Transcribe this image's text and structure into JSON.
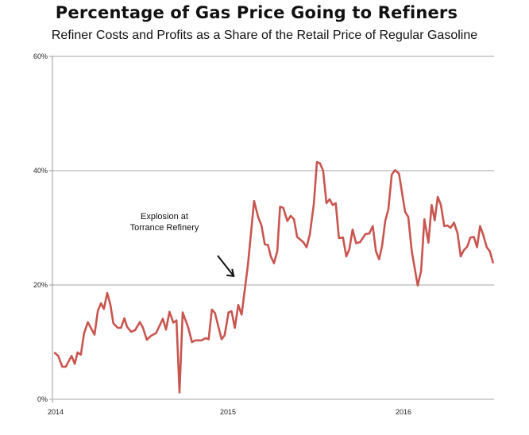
{
  "chart_data": {
    "type": "line",
    "title": "Percentage of Gas Price Going to Refiners",
    "subtitle": "Refiner Costs and Profits as a Share of the Retail Price of Regular Gasoline",
    "xlabel": "",
    "ylabel": "",
    "xlim": [
      2014,
      2016.52
    ],
    "ylim": [
      0,
      60
    ],
    "x_ticks": [
      {
        "value": 2014,
        "label": "2014"
      },
      {
        "value": 2015,
        "label": "2015"
      },
      {
        "value": 2016,
        "label": "2016"
      }
    ],
    "y_ticks": [
      {
        "value": 0,
        "label": "0%"
      },
      {
        "value": 20,
        "label": "20%"
      },
      {
        "value": 40,
        "label": "40%"
      },
      {
        "value": 60,
        "label": "60%"
      }
    ],
    "grid": "horizontal",
    "line_color": "#c9554f",
    "annotation": {
      "lines": [
        "Explosion at",
        "Torrance Refinery"
      ],
      "arrow_to": {
        "x": 2015.06,
        "y": 21
      }
    },
    "series": [
      {
        "x": [
          2014.01,
          2014.033,
          2014.056,
          2014.076,
          2014.109,
          2014.127,
          2014.143,
          2014.162,
          2014.18,
          2014.202,
          2014.24,
          2014.259,
          2014.277,
          2014.293,
          2014.312,
          2014.33,
          2014.347,
          2014.372,
          2014.391,
          2014.41,
          2014.425,
          2014.448,
          2014.471,
          2014.498,
          2014.516,
          2014.538,
          2014.561,
          2014.591,
          2014.629,
          2014.647,
          2014.667,
          2014.689,
          2014.707,
          2014.724,
          2014.742,
          2014.772,
          2014.795,
          2014.813,
          2014.848,
          2014.873,
          2014.89,
          2014.908,
          2014.926,
          2014.964,
          2014.981,
          2015.003,
          2015.021,
          2015.039,
          2015.059,
          2015.078,
          2015.114,
          2015.149,
          2015.172,
          2015.191,
          2015.21,
          2015.228,
          2015.244,
          2015.262,
          2015.281,
          2015.297,
          2015.315,
          2015.338,
          2015.357,
          2015.376,
          2015.394,
          2015.429,
          2015.448,
          2015.466,
          2015.489,
          2015.507,
          2015.524,
          2015.542,
          2015.561,
          2015.579,
          2015.597,
          2015.614,
          2015.632,
          2015.655,
          2015.674,
          2015.692,
          2015.71,
          2015.73,
          2015.753,
          2015.783,
          2015.805,
          2015.825,
          2015.843,
          2015.861,
          2015.878,
          2015.896,
          2015.914,
          2015.933,
          2015.952,
          2015.974,
          2016.009,
          2016.027,
          2016.047,
          2016.081,
          2016.1,
          2016.119,
          2016.142,
          2016.16,
          2016.178,
          2016.195,
          2016.213,
          2016.232,
          2016.25,
          2016.268,
          2016.288,
          2016.308,
          2016.326,
          2016.344,
          2016.363,
          2016.381,
          2016.401,
          2016.419,
          2016.436,
          2016.454,
          2016.474,
          2016.492,
          2016.511
        ],
        "y": [
          8.2,
          7.6,
          5.7,
          5.7,
          7.6,
          6.2,
          8.2,
          7.8,
          11.5,
          13.5,
          11.3,
          15.5,
          16.8,
          15.8,
          18.6,
          16.6,
          13.3,
          12.5,
          12.5,
          14.2,
          12.7,
          11.8,
          12.1,
          13.5,
          12.5,
          10.4,
          11.1,
          11.6,
          14.1,
          12.2,
          15.3,
          13.4,
          13.8,
          1.2,
          15.2,
          12.7,
          10.0,
          10.3,
          10.3,
          10.7,
          10.5,
          15.7,
          15.1,
          10.5,
          11.2,
          15.2,
          15.4,
          12.5,
          16.5,
          14.8,
          23.6,
          34.7,
          31.9,
          30.4,
          27.1,
          27.0,
          25.0,
          23.8,
          25.9,
          33.7,
          33.5,
          31.2,
          32.1,
          31.5,
          28.4,
          27.5,
          26.6,
          28.8,
          34.2,
          41.5,
          41.3,
          40.0,
          34.3,
          35.0,
          34.0,
          34.3,
          28.2,
          28.3,
          25.0,
          26.3,
          29.7,
          27.3,
          27.5,
          28.9,
          29.0,
          30.3,
          25.9,
          24.5,
          26.8,
          31.2,
          33.3,
          39.3,
          40.1,
          39.5,
          32.8,
          31.9,
          25.9,
          19.9,
          22.4,
          31.5,
          27.4,
          34.0,
          31.3,
          35.4,
          34.0,
          30.3,
          30.4,
          30.0,
          30.9,
          29.0,
          25.0,
          26.1,
          26.7,
          28.3,
          28.4,
          26.6,
          30.3,
          28.8,
          26.6,
          25.9,
          23.8
        ]
      }
    ]
  }
}
